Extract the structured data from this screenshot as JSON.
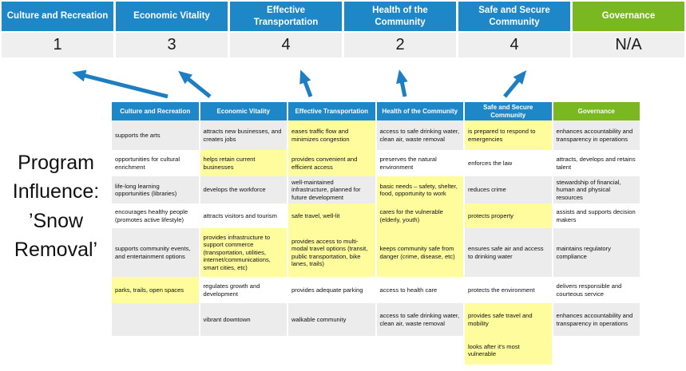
{
  "colors": {
    "header_blue": "#1e87c8",
    "header_green": "#79b821",
    "highlight_yellow": "#fffc9e",
    "row_gray": "#ececec",
    "row_white": "#ffffff",
    "score_bg": "#efefef",
    "arrow_blue": "#1d7fc1"
  },
  "program_label": "Program Influence: ’Snow Removal’",
  "scoreboard": {
    "columns": [
      {
        "label": "Culture and Recreation",
        "score": "1",
        "color": "blue"
      },
      {
        "label": "Economic Vitality",
        "score": "3",
        "color": "blue"
      },
      {
        "label": "Effective Transportation",
        "score": "4",
        "color": "blue"
      },
      {
        "label": "Health of the Community",
        "score": "2",
        "color": "blue"
      },
      {
        "label": "Safe and Secure Community",
        "score": "4",
        "color": "blue"
      },
      {
        "label": "Governance",
        "score": "N/A",
        "color": "green"
      }
    ]
  },
  "matrix": {
    "headers": [
      {
        "label": "Culture and Recreation",
        "color": "blue"
      },
      {
        "label": "Economic Vitality",
        "color": "blue"
      },
      {
        "label": "Effective Transportation",
        "color": "blue"
      },
      {
        "label": "Health of the Community",
        "color": "blue"
      },
      {
        "label": "Safe and Secure Community",
        "color": "blue"
      },
      {
        "label": "Governance",
        "color": "green"
      }
    ],
    "rows": [
      [
        {
          "text": "supports the arts",
          "bg": "gray"
        },
        {
          "text": "attracts new businesses, and creates jobs",
          "bg": "gray"
        },
        {
          "text": "eases traffic flow and minimizes congestion",
          "bg": "yellow"
        },
        {
          "text": "access to safe drinking water, clean air, waste removal",
          "bg": "gray"
        },
        {
          "text": "is prepared to respond to emergencies",
          "bg": "yellow"
        },
        {
          "text": "enhances accountability and transparency in operations",
          "bg": "gray"
        }
      ],
      [
        {
          "text": "opportunities for cultural enrichment",
          "bg": "white"
        },
        {
          "text": "helps retain current businesses",
          "bg": "yellow"
        },
        {
          "text": "provides convenient and efficient access",
          "bg": "yellow"
        },
        {
          "text": "preserves the natural environment",
          "bg": "white"
        },
        {
          "text": "enforces the law",
          "bg": "white"
        },
        {
          "text": "attracts, develops and retains talent",
          "bg": "white"
        }
      ],
      [
        {
          "text": "life-long learning opportunities (libraries)",
          "bg": "gray"
        },
        {
          "text": "develops the workforce",
          "bg": "gray"
        },
        {
          "text": "well-maintained infrastructure, planned for future development",
          "bg": "gray"
        },
        {
          "text": "basic needs – safety, shelter, food, opportunity to work",
          "bg": "yellow"
        },
        {
          "text": "reduces crime",
          "bg": "gray"
        },
        {
          "text": "stewardship of financial, human and physical resources",
          "bg": "gray"
        }
      ],
      [
        {
          "text": "encourages healthy people (promotes active lifestyle)",
          "bg": "white"
        },
        {
          "text": "attracts visitors and tourism",
          "bg": "white"
        },
        {
          "text": "safe travel, well-lit",
          "bg": "yellow"
        },
        {
          "text": "cares for the vulnerable (elderly, youth)",
          "bg": "yellow"
        },
        {
          "text": "protects property",
          "bg": "yellow"
        },
        {
          "text": "assists and supports decision makers",
          "bg": "white"
        }
      ],
      [
        {
          "text": "supports community events, and entertainment options",
          "bg": "gray"
        },
        {
          "text": "provides infrastructure to support commerce (transportation, utilities, internet/communications, smart cities, etc)",
          "bg": "yellow"
        },
        {
          "text": "provides access to multi-modal travel options (transit, public transportation, bike lanes, trails)",
          "bg": "yellow"
        },
        {
          "text": "keeps community safe from danger (crime, disease, etc)",
          "bg": "yellow"
        },
        {
          "text": "ensures safe air and access to drinking water",
          "bg": "gray"
        },
        {
          "text": "maintains regulatory compliance",
          "bg": "gray"
        }
      ],
      [
        {
          "text": "parks, trails, open spaces",
          "bg": "yellow"
        },
        {
          "text": "regulates growth and development",
          "bg": "white"
        },
        {
          "text": "provides adequate parking",
          "bg": "white"
        },
        {
          "text": "access to health care",
          "bg": "white"
        },
        {
          "text": "protects the environment",
          "bg": "white"
        },
        {
          "text": "delivers responsible and courteous service",
          "bg": "white"
        }
      ],
      [
        {
          "text": "",
          "bg": "gray"
        },
        {
          "text": "vibrant downtown",
          "bg": "gray"
        },
        {
          "text": "walkable community",
          "bg": "gray"
        },
        {
          "text": "access to safe drinking water, clean air, waste removal",
          "bg": "gray"
        },
        {
          "text": "provides safe travel and mobility",
          "bg": "yellow"
        },
        {
          "text": "enhances accountability and transparency in operations",
          "bg": "gray"
        }
      ],
      [
        {
          "text": "",
          "bg": "white"
        },
        {
          "text": "",
          "bg": "white"
        },
        {
          "text": "",
          "bg": "white"
        },
        {
          "text": "",
          "bg": "white"
        },
        {
          "text": "looks after it's most vulnerable",
          "bg": "yellow"
        },
        {
          "text": "",
          "bg": "white"
        }
      ]
    ]
  }
}
